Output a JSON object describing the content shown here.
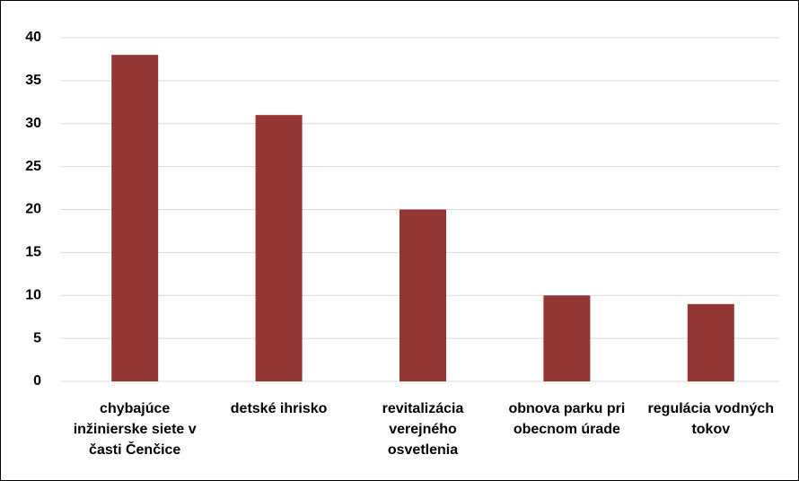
{
  "chart_data": {
    "type": "bar",
    "categories": [
      "chybajúce inžinierske siete v časti Čenčice",
      "detské ihrisko",
      "revitalizácia verejného osvetlenia",
      "obnova parku pri obecnom úrade",
      "regulácia vodných tokov"
    ],
    "values": [
      38,
      31,
      20,
      10,
      9
    ],
    "color": "#943634",
    "ylim": [
      0,
      40
    ],
    "yticks": [
      0,
      5,
      10,
      15,
      20,
      25,
      30,
      35,
      40
    ],
    "grid": true
  }
}
